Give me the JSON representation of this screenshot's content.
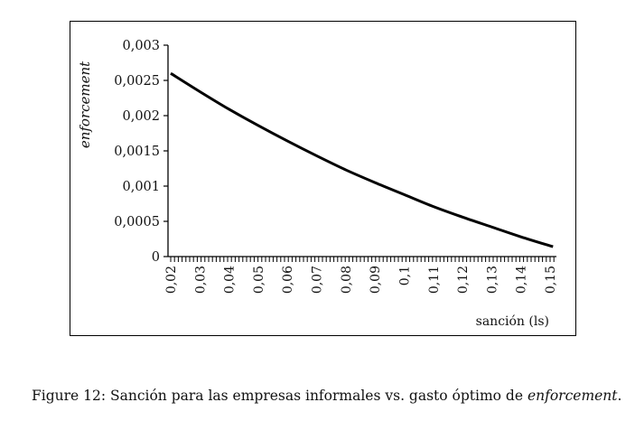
{
  "chart_data": {
    "type": "line",
    "title": "",
    "xlabel": "sanción (ls)",
    "ylabel": "enforcement",
    "xlim": [
      0.02,
      0.153
    ],
    "ylim": [
      0,
      0.003
    ],
    "grid": false,
    "legend": "none",
    "x_tick_labels": [
      "0,02",
      "0,03",
      "0,04",
      "0,05",
      "0,06",
      "0,07",
      "0,08",
      "0,09",
      "0,1",
      "0,11",
      "0,12",
      "0,13",
      "0,14",
      "0,15"
    ],
    "x_tick_values": [
      0.02,
      0.03,
      0.04,
      0.05,
      0.06,
      0.07,
      0.08,
      0.09,
      0.1,
      0.11,
      0.12,
      0.13,
      0.14,
      0.15
    ],
    "x_minor_tick_step": 0.0013,
    "y_tick_labels": [
      "0",
      "0,0005",
      "0,001",
      "0,0015",
      "0,002",
      "0,0025",
      "0,003"
    ],
    "y_tick_values": [
      0,
      0.0005,
      0.001,
      0.0015,
      0.002,
      0.0025,
      0.003
    ],
    "series": [
      {
        "name": "enforcement",
        "color": "#000000",
        "x": [
          0.02,
          0.03,
          0.04,
          0.05,
          0.06,
          0.07,
          0.08,
          0.09,
          0.1,
          0.11,
          0.12,
          0.13,
          0.14,
          0.151
        ],
        "y": [
          0.0026,
          0.00234,
          0.00209,
          0.00186,
          0.00164,
          0.00143,
          0.00123,
          0.00105,
          0.00088,
          0.00071,
          0.00056,
          0.00042,
          0.00028,
          0.00014
        ]
      }
    ]
  },
  "caption": {
    "prefix": "Figure 12: ",
    "text": "Sanción para las empresas informales vs. gasto óptimo de ",
    "emphasis": "enforcement",
    "suffix": "."
  }
}
